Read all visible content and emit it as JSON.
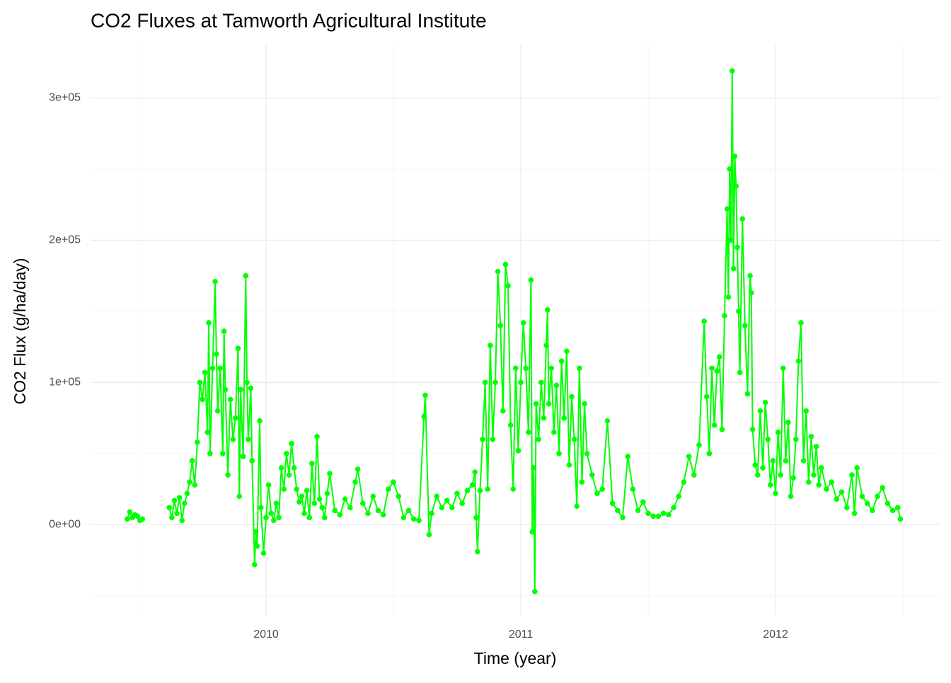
{
  "chart_data": {
    "type": "line",
    "title": "CO2 Fluxes at Tamworth Agricultural Institute",
    "x_label": "Time (year)",
    "y_label": "CO2 Flux (g/ha/day)",
    "xlim": [
      2009.311,
      2012.65
    ],
    "ylim": [
      -64000,
      338000
    ],
    "xticks": [
      2010,
      2011,
      2012
    ],
    "yticks": [
      {
        "value": 0,
        "label": "0e+00"
      },
      {
        "value": 100000,
        "label": "1e+05"
      },
      {
        "value": 200000,
        "label": "2e+05"
      },
      {
        "value": 300000,
        "label": "3e+05"
      }
    ],
    "xminor": [
      2009.5,
      2010.5,
      2011.5,
      2012.5
    ],
    "yminor": [
      -50000,
      50000,
      150000,
      250000
    ],
    "grid": true,
    "series": [
      {
        "color": "#00ff00",
        "x": [
          2009.455,
          2009.465,
          2009.475,
          2009.485,
          2009.495,
          2009.505,
          2009.515,
          2009.56,
          2009.62,
          2009.63,
          2009.64,
          2009.65,
          2009.66,
          2009.67,
          2009.68,
          2009.69,
          2009.7,
          2009.71,
          2009.72,
          2009.73,
          2009.74,
          2009.75,
          2009.76,
          2009.77,
          2009.775,
          2009.78,
          2009.79,
          2009.8,
          2009.805,
          2009.81,
          2009.82,
          2009.83,
          2009.835,
          2009.84,
          2009.85,
          2009.86,
          2009.87,
          2009.88,
          2009.89,
          2009.895,
          2009.9,
          2009.91,
          2009.92,
          2009.925,
          2009.93,
          2009.94,
          2009.945,
          2009.955,
          2009.96,
          2009.965,
          2009.975,
          2009.98,
          2009.99,
          2010.0,
          2010.01,
          2010.02,
          2010.03,
          2010.04,
          2010.05,
          2010.06,
          2010.07,
          2010.08,
          2010.09,
          2010.1,
          2010.11,
          2010.12,
          2010.13,
          2010.14,
          2010.15,
          2010.16,
          2010.17,
          2010.18,
          2010.19,
          2010.2,
          2010.21,
          2010.22,
          2010.23,
          2010.24,
          2010.25,
          2010.27,
          2010.29,
          2010.31,
          2010.33,
          2010.35,
          2010.36,
          2010.38,
          2010.4,
          2010.42,
          2010.44,
          2010.46,
          2010.48,
          2010.5,
          2010.52,
          2010.54,
          2010.56,
          2010.58,
          2010.6,
          2010.62,
          2010.625,
          2010.64,
          2010.65,
          2010.67,
          2010.69,
          2010.71,
          2010.73,
          2010.75,
          2010.77,
          2010.79,
          2010.81,
          2010.82,
          2010.825,
          2010.83,
          2010.84,
          2010.85,
          2010.86,
          2010.87,
          2010.88,
          2010.89,
          2010.9,
          2010.91,
          2010.92,
          2010.93,
          2010.94,
          2010.95,
          2010.96,
          2010.97,
          2010.98,
          2010.99,
          2011.0,
          2011.01,
          2011.02,
          2011.03,
          2011.04,
          2011.045,
          2011.05,
          2011.055,
          2011.06,
          2011.07,
          2011.08,
          2011.09,
          2011.1,
          2011.105,
          2011.11,
          2011.12,
          2011.13,
          2011.14,
          2011.15,
          2011.16,
          2011.17,
          2011.18,
          2011.19,
          2011.2,
          2011.21,
          2011.22,
          2011.23,
          2011.24,
          2011.25,
          2011.26,
          2011.28,
          2011.3,
          2011.32,
          2011.34,
          2011.36,
          2011.38,
          2011.4,
          2011.42,
          2011.44,
          2011.46,
          2011.48,
          2011.5,
          2011.52,
          2011.54,
          2011.56,
          2011.58,
          2011.6,
          2011.62,
          2011.64,
          2011.66,
          2011.68,
          2011.7,
          2011.72,
          2011.73,
          2011.74,
          2011.75,
          2011.76,
          2011.77,
          2011.78,
          2011.79,
          2011.8,
          2011.81,
          2011.815,
          2011.82,
          2011.825,
          2011.83,
          2011.835,
          2011.84,
          2011.845,
          2011.85,
          2011.855,
          2011.86,
          2011.87,
          2011.88,
          2011.89,
          2011.9,
          2011.905,
          2011.91,
          2011.92,
          2011.93,
          2011.94,
          2011.95,
          2011.96,
          2011.97,
          2011.98,
          2011.99,
          2012.0,
          2012.01,
          2012.02,
          2012.03,
          2012.04,
          2012.05,
          2012.06,
          2012.07,
          2012.08,
          2012.09,
          2012.1,
          2012.11,
          2012.12,
          2012.13,
          2012.14,
          2012.15,
          2012.16,
          2012.17,
          2012.18,
          2012.2,
          2012.22,
          2012.24,
          2012.26,
          2012.28,
          2012.3,
          2012.31,
          2012.32,
          2012.34,
          2012.36,
          2012.38,
          2012.4,
          2012.42,
          2012.44,
          2012.46,
          2012.48,
          2012.49
        ],
        "values": [
          4000,
          9000,
          5000,
          7000,
          6000,
          3000,
          4000,
          null,
          12000,
          5000,
          17000,
          8000,
          19000,
          3000,
          15000,
          22000,
          30000,
          45000,
          28000,
          58000,
          100000,
          88000,
          107000,
          65000,
          142000,
          50000,
          110000,
          171000,
          120000,
          80000,
          110000,
          50000,
          136000,
          95000,
          35000,
          88000,
          60000,
          75000,
          124000,
          20000,
          95000,
          48000,
          175000,
          100000,
          60000,
          96000,
          45000,
          -28000,
          -5000,
          -15000,
          73000,
          12000,
          -20000,
          5000,
          28000,
          8000,
          3000,
          15000,
          5000,
          40000,
          25000,
          50000,
          35000,
          57000,
          40000,
          25000,
          16000,
          20000,
          8000,
          24000,
          5000,
          43000,
          15000,
          62000,
          18000,
          12000,
          5000,
          22000,
          36000,
          10000,
          7000,
          18000,
          12000,
          30000,
          39000,
          15000,
          8000,
          20000,
          10000,
          7000,
          25000,
          30000,
          20000,
          5000,
          10000,
          4000,
          3000,
          76000,
          91000,
          -7000,
          8000,
          20000,
          12000,
          17000,
          12000,
          22000,
          15000,
          24000,
          28000,
          37000,
          5000,
          -19000,
          24000,
          60000,
          100000,
          25000,
          126000,
          60000,
          100000,
          178000,
          140000,
          80000,
          183000,
          168000,
          70000,
          25000,
          110000,
          52000,
          100000,
          142000,
          110000,
          65000,
          172000,
          -5000,
          40000,
          -47000,
          85000,
          60000,
          100000,
          75000,
          126000,
          151000,
          85000,
          110000,
          65000,
          98000,
          50000,
          115000,
          75000,
          122000,
          42000,
          90000,
          60000,
          13000,
          110000,
          30000,
          85000,
          50000,
          35000,
          22000,
          25000,
          73000,
          15000,
          10000,
          5000,
          48000,
          25000,
          10000,
          16000,
          8000,
          6000,
          6000,
          8000,
          7000,
          12000,
          20000,
          30000,
          48000,
          35000,
          56000,
          143000,
          90000,
          50000,
          110000,
          70000,
          108000,
          118000,
          67000,
          147000,
          222000,
          160000,
          250000,
          200000,
          319000,
          180000,
          259000,
          238000,
          195000,
          150000,
          107000,
          215000,
          140000,
          92000,
          175000,
          163000,
          67000,
          42000,
          35000,
          80000,
          40000,
          86000,
          60000,
          28000,
          45000,
          22000,
          65000,
          35000,
          110000,
          45000,
          72000,
          20000,
          33000,
          60000,
          115000,
          142000,
          45000,
          80000,
          30000,
          62000,
          35000,
          55000,
          28000,
          40000,
          25000,
          30000,
          18000,
          23000,
          12000,
          35000,
          8000,
          40000,
          20000,
          15000,
          10000,
          20000,
          26000,
          15000,
          10000,
          12000,
          4000
        ]
      }
    ]
  }
}
